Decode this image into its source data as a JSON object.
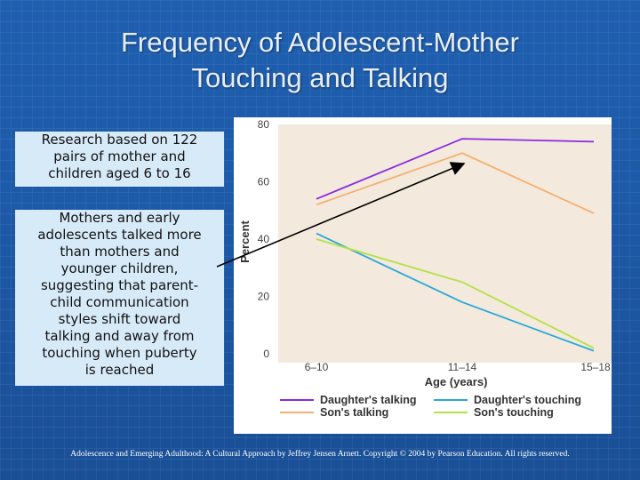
{
  "title": {
    "line1": "Frequency of Adolescent-Mother",
    "line2": "Touching and Talking"
  },
  "box1": {
    "lines": [
      "Research based on 122",
      "pairs of mother and",
      "children aged 6 to 16"
    ]
  },
  "box2": {
    "lines": [
      "Mothers and early",
      "adolescents talked more",
      "than mothers and",
      "younger children,",
      "suggesting that parent-",
      "child communication",
      "styles shift toward",
      "talking and away from",
      "touching when puberty",
      "is reached"
    ]
  },
  "footer": "Adolescence and Emerging Adulthood: A Cultural Approach by Jeffrey Jensen Arnett. Copyright © 2004 by Pearson Education. All rights reserved.",
  "chart_data": {
    "type": "line",
    "categories": [
      "6–10",
      "11–14",
      "15–18"
    ],
    "xlabel": "Age (years)",
    "ylabel": "Percent",
    "ylim": [
      0,
      80
    ],
    "yticks": [
      0,
      20,
      40,
      60,
      80
    ],
    "grid": false,
    "legend_position": "bottom",
    "series": [
      {
        "name": "Daughter's talking",
        "color": "#8a2be2",
        "values": [
          54,
          75,
          74
        ]
      },
      {
        "name": "Son's talking",
        "color": "#f5b070",
        "values": [
          52,
          70,
          49
        ]
      },
      {
        "name": "Daughter's touching",
        "color": "#2aa8d8",
        "values": [
          42,
          18,
          1
        ]
      },
      {
        "name": "Son's touching",
        "color": "#b5e048",
        "values": [
          40,
          25,
          2
        ]
      }
    ]
  }
}
